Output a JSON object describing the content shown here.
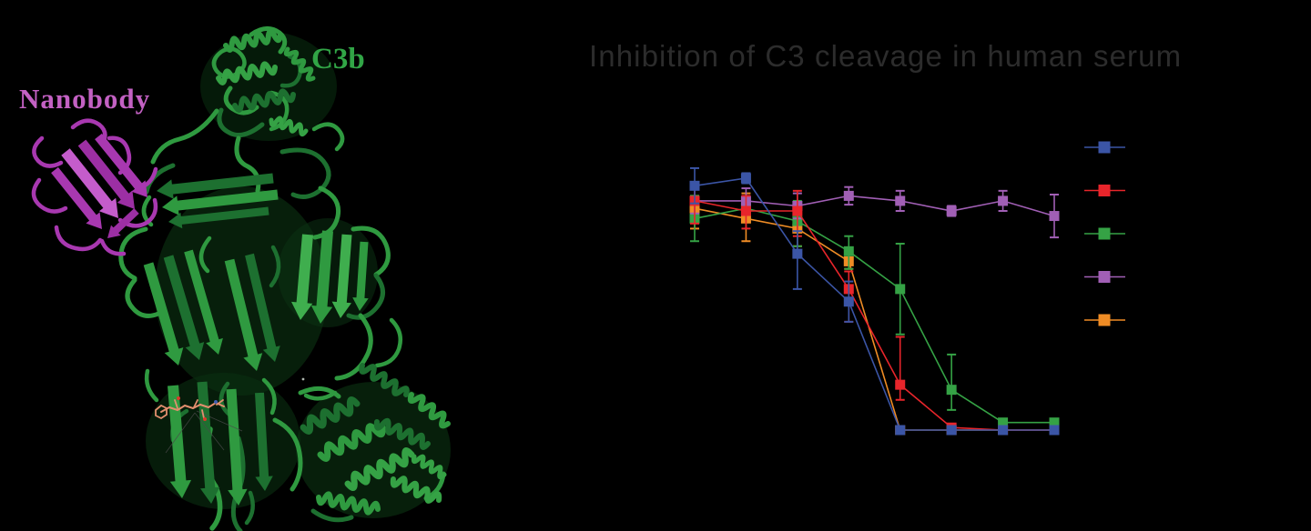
{
  "figure": {
    "background_color": "#000000"
  },
  "structure_panel": {
    "nanobody_label": "Nanobody",
    "c3b_label": "C3b",
    "colors": {
      "nanobody_label": "#c361c3",
      "nanobody_ribbon": "#a838b0",
      "nanobody_ribbon_bright": "#c45ccb",
      "c3b_label": "#31a546",
      "ribbon_green": "#2f9a40",
      "ribbon_green_dark": "#1d7030",
      "ribbon_green_bright": "#3fae4e",
      "ligand_salmon": "#e28f6e"
    }
  },
  "chart_panel": {
    "title": "Inhibition of C3 cleavage in human serum",
    "title_color": "#2c2c2c",
    "chart_data": {
      "type": "line",
      "title": "Inhibition of C3 cleavage in human serum",
      "x_index": [
        1,
        2,
        3,
        4,
        5,
        6,
        7,
        8
      ],
      "axes_visible": false,
      "x_tick_labels_visible": false,
      "y_tick_labels_visible": false,
      "grid": false,
      "legend_position": "right",
      "legend_labels_visible": false,
      "series": [
        {
          "name": "blue-series",
          "color": "#3b55a6",
          "marker": "square",
          "values": [
            97,
            100,
            70,
            51,
            0,
            0,
            0,
            0
          ],
          "err_up": [
            7,
            2,
            9,
            8,
            0,
            0,
            0,
            0
          ],
          "err_down": [
            7,
            2,
            14,
            8,
            0,
            0,
            0,
            0
          ]
        },
        {
          "name": "red-series",
          "color": "#e8252b",
          "marker": "square",
          "values": [
            91,
            87,
            87,
            56,
            18,
            1,
            0,
            0
          ],
          "err_up": [
            5,
            6,
            8,
            7,
            19,
            0,
            0,
            0
          ],
          "err_down": [
            9,
            7,
            10,
            13,
            6,
            0,
            0,
            0
          ]
        },
        {
          "name": "green-series",
          "color": "#35a245",
          "marker": "square",
          "values": [
            84,
            88,
            83,
            71,
            56,
            16,
            3,
            3
          ],
          "err_up": [
            9,
            0,
            8,
            6,
            18,
            14,
            0,
            0
          ],
          "err_down": [
            9,
            0,
            10,
            7,
            18,
            8,
            0,
            0
          ]
        },
        {
          "name": "purple-series",
          "color": "#a15fb5",
          "marker": "square",
          "values": [
            91,
            91,
            89,
            93,
            91,
            87,
            91,
            85
          ],
          "err_up": [
            5,
            5,
            5,
            3.5,
            4,
            2,
            4,
            8.5
          ],
          "err_down": [
            5,
            5,
            5,
            3.5,
            4,
            2,
            4,
            8.5
          ]
        },
        {
          "name": "orange-series",
          "color": "#ef8c25",
          "marker": "square",
          "values": [
            88,
            84,
            80,
            67,
            0,
            0,
            0,
            0
          ],
          "err_up": [
            5,
            10,
            8,
            3,
            0,
            0,
            0,
            0
          ],
          "err_down": [
            8,
            9,
            7,
            3,
            0,
            0,
            0,
            0
          ]
        }
      ]
    }
  }
}
